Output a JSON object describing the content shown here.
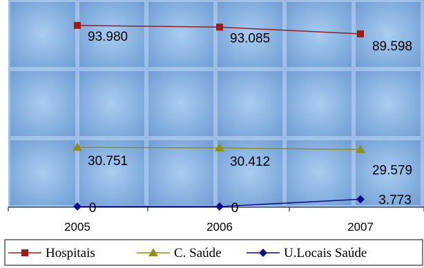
{
  "chart_data": {
    "type": "line",
    "categories": [
      "2005",
      "2006",
      "2007"
    ],
    "ylim": [
      0,
      100000
    ],
    "series": [
      {
        "name": "Hospitais",
        "values": [
          93980,
          93085,
          89598
        ],
        "labels": [
          "93.980",
          "93.085",
          "89.598"
        ],
        "color": "#9b1b1b",
        "marker": "square"
      },
      {
        "name": "C. Saúde",
        "values": [
          30751,
          30412,
          29579
        ],
        "labels": [
          "30.751",
          "30.412",
          "29.579"
        ],
        "color": "#8e8e1a",
        "marker": "triangle"
      },
      {
        "name": "U.Locais Saúde",
        "values": [
          0,
          0,
          3773
        ],
        "labels": [
          "0",
          "0",
          "3.773"
        ],
        "color": "#0a0a8a",
        "marker": "diamond"
      }
    ],
    "grid": false,
    "legend_position": "bottom"
  }
}
